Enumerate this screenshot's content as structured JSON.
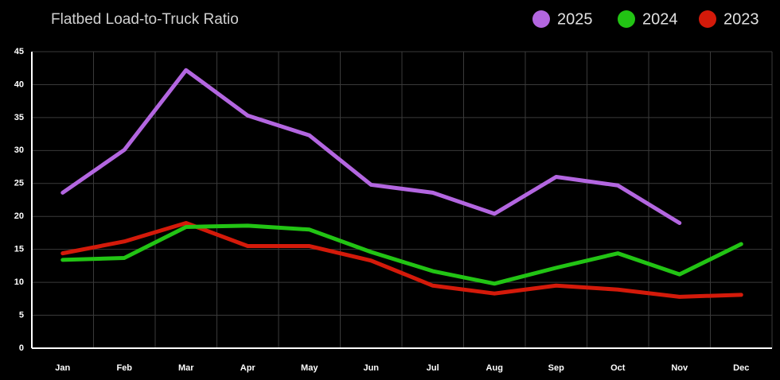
{
  "chart_data": {
    "type": "line",
    "title": "Flatbed Load-to-Truck Ratio",
    "categories": [
      "Jan",
      "Feb",
      "Mar",
      "Apr",
      "May",
      "Jun",
      "Jul",
      "Aug",
      "Sep",
      "Oct",
      "Nov",
      "Dec"
    ],
    "series": [
      {
        "name": "2025",
        "color": "#b366e0",
        "values": [
          23.6,
          30.1,
          42.2,
          35.3,
          32.3,
          24.8,
          23.6,
          20.4,
          26.0,
          24.7,
          19.0,
          null
        ]
      },
      {
        "name": "2024",
        "color": "#22c414",
        "values": [
          13.4,
          13.7,
          18.4,
          18.6,
          18.0,
          14.6,
          11.7,
          9.8,
          12.2,
          14.4,
          11.2,
          15.8
        ]
      },
      {
        "name": "2023",
        "color": "#d41a0a",
        "values": [
          14.4,
          16.2,
          19.0,
          15.5,
          15.5,
          13.3,
          9.5,
          8.3,
          9.5,
          8.9,
          7.8,
          8.1
        ]
      }
    ],
    "ylim": [
      0,
      45
    ],
    "yticks": [
      0,
      5,
      10,
      15,
      20,
      25,
      30,
      35,
      40,
      45
    ],
    "grid": true,
    "legend": "top-right"
  }
}
